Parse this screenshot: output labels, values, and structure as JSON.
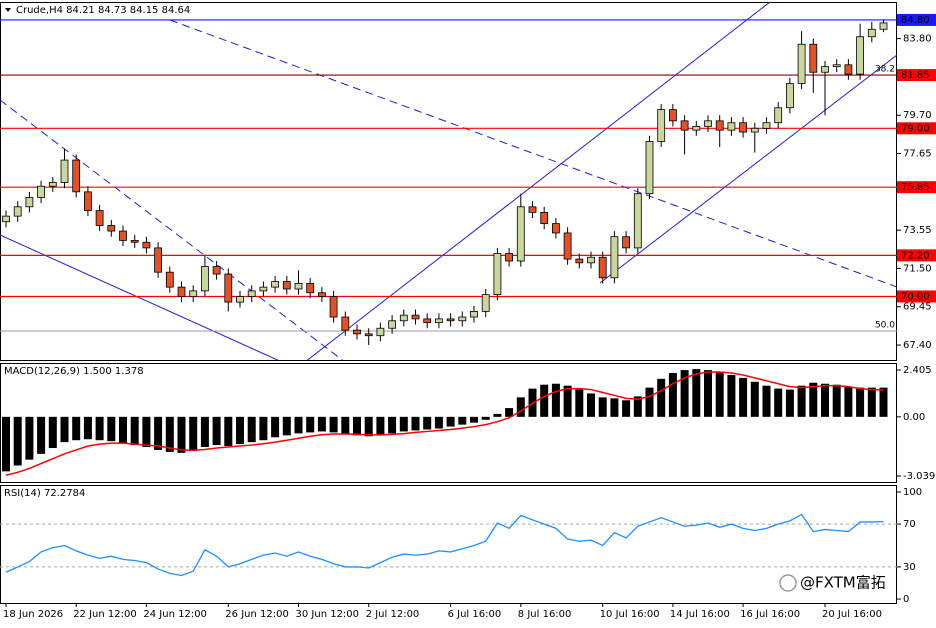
{
  "chart_data": [
    {
      "type": "candlestick",
      "title": "Crude,H4  84.21 84.73 84.15 84.64",
      "open": [
        74.0,
        74.3,
        74.8,
        75.3,
        75.9,
        76.1,
        77.3,
        75.6,
        74.6,
        73.8,
        73.5,
        73.0,
        72.9,
        72.6,
        71.3,
        70.5,
        70.0,
        70.3,
        71.6,
        71.2,
        69.7,
        70.0,
        70.3,
        70.5,
        70.8,
        70.4,
        70.7,
        70.2,
        70.0,
        68.9,
        68.2,
        68.0,
        67.9,
        68.3,
        68.7,
        69.0,
        68.8,
        68.6,
        68.8,
        68.7,
        68.9,
        69.2,
        70.1,
        72.3,
        71.9,
        74.8,
        74.5,
        73.9,
        73.4,
        72.0,
        71.8,
        72.1,
        71.0,
        73.2,
        72.6,
        75.5,
        78.3,
        80.0,
        79.4,
        78.9,
        79.1,
        79.4,
        78.9,
        79.3,
        78.8,
        79.0,
        79.3,
        80.1,
        81.4,
        83.5,
        82.0,
        82.3,
        82.4,
        81.9,
        83.9,
        84.3
      ],
      "high": [
        74.6,
        75.1,
        75.6,
        76.2,
        76.4,
        77.9,
        77.6,
        75.9,
        74.9,
        74.1,
        73.8,
        73.3,
        73.2,
        72.9,
        71.6,
        70.8,
        70.6,
        72.2,
        71.9,
        71.5,
        70.3,
        70.6,
        70.8,
        71.1,
        71.1,
        71.4,
        71.0,
        70.5,
        70.3,
        69.2,
        68.5,
        68.3,
        68.6,
        69.0,
        69.3,
        69.3,
        69.1,
        69.1,
        69.1,
        69.2,
        69.5,
        70.4,
        72.6,
        72.6,
        75.5,
        75.1,
        74.8,
        74.2,
        73.7,
        72.3,
        72.4,
        72.4,
        73.5,
        73.5,
        75.8,
        78.6,
        80.3,
        80.3,
        79.7,
        79.4,
        79.7,
        79.7,
        79.6,
        79.6,
        79.3,
        79.6,
        80.4,
        81.7,
        84.2,
        83.8,
        82.6,
        82.7,
        82.7,
        84.6,
        84.7,
        84.8
      ],
      "low": [
        73.7,
        74.0,
        74.5,
        75.0,
        75.6,
        75.8,
        75.3,
        74.3,
        73.5,
        73.2,
        72.7,
        72.6,
        72.3,
        71.0,
        70.2,
        69.7,
        69.7,
        70.0,
        70.9,
        69.2,
        69.4,
        69.7,
        70.0,
        70.2,
        70.1,
        70.1,
        69.9,
        69.7,
        68.6,
        67.9,
        67.7,
        67.4,
        67.6,
        68.0,
        68.4,
        68.5,
        68.3,
        68.3,
        68.4,
        68.4,
        68.6,
        68.9,
        69.8,
        71.6,
        71.6,
        74.2,
        73.6,
        73.1,
        71.7,
        71.5,
        71.5,
        70.7,
        70.7,
        72.3,
        72.3,
        75.2,
        78.0,
        79.1,
        77.6,
        78.6,
        78.8,
        78.0,
        78.6,
        78.5,
        77.7,
        78.7,
        79.0,
        79.8,
        81.1,
        80.9,
        79.7,
        82.0,
        81.6,
        81.6,
        83.6,
        84.15
      ],
      "close": [
        74.3,
        74.8,
        75.3,
        75.9,
        76.1,
        77.3,
        75.6,
        74.6,
        73.8,
        73.5,
        73.0,
        72.9,
        72.6,
        71.3,
        70.5,
        70.0,
        70.3,
        71.6,
        71.2,
        69.7,
        70.0,
        70.3,
        70.5,
        70.8,
        70.4,
        70.7,
        70.2,
        70.0,
        68.9,
        68.2,
        68.0,
        67.9,
        68.3,
        68.7,
        69.0,
        68.8,
        68.6,
        68.8,
        68.7,
        68.9,
        69.2,
        70.1,
        72.3,
        71.9,
        74.8,
        74.5,
        73.9,
        73.4,
        72.0,
        71.8,
        72.1,
        71.0,
        73.2,
        72.6,
        75.5,
        78.3,
        80.0,
        79.4,
        78.9,
        79.1,
        79.4,
        78.9,
        79.3,
        78.8,
        79.0,
        79.3,
        80.1,
        81.4,
        83.5,
        82.0,
        82.3,
        82.4,
        81.9,
        83.9,
        84.3,
        84.64
      ],
      "up_color": "#c9d69e",
      "down_color": "#e0522a",
      "ylim": [
        66.6,
        85.76
      ],
      "yticks": [
        {
          "value": 67.4,
          "label": "67.40"
        },
        {
          "value": 69.45,
          "label": "69.45"
        },
        {
          "value": 71.5,
          "label": "71.50"
        },
        {
          "value": 73.55,
          "label": "73.55"
        },
        {
          "value": 77.65,
          "label": "77.65"
        },
        {
          "value": 79.7,
          "label": "79.70"
        },
        {
          "value": 83.8,
          "label": "83.80"
        }
      ],
      "levels": [
        {
          "value": 84.8,
          "label": "84.80",
          "color": "#1a1aff",
          "line_color": "#1a1aff"
        },
        {
          "value": 81.85,
          "label": "81.85",
          "color": "#ff0000",
          "line_color": "#8b0000"
        },
        {
          "value": 79.0,
          "label": "79.00",
          "color": "#ff0000",
          "line_color": "#ff0000"
        },
        {
          "value": 75.85,
          "label": "75.85",
          "color": "#ff0000",
          "line_color": "#ff0000"
        },
        {
          "value": 72.2,
          "label": "72.20",
          "color": "#ff0000",
          "line_color": "#ff0000"
        },
        {
          "value": 70.0,
          "label": "70.00",
          "color": "#ff0000",
          "line_color": "#ff0000"
        }
      ],
      "fib_levels": [
        {
          "value": 81.85,
          "label": "38.2"
        },
        {
          "value": 68.15,
          "label": "50.0"
        }
      ],
      "xticks": [
        {
          "value": 0,
          "label": "18 Jun 2026"
        },
        {
          "value": 6,
          "label": "22 Jun 12:00"
        },
        {
          "value": 12,
          "label": "24 Jun 12:00"
        },
        {
          "value": 19,
          "label": "26 Jun 12:00"
        },
        {
          "value": 25,
          "label": "30 Jun 12:00"
        },
        {
          "value": 31,
          "label": "2 Jul 12:00"
        },
        {
          "value": 38,
          "label": "6 Jul 16:00"
        },
        {
          "value": 44,
          "label": "8 Jul 16:00"
        },
        {
          "value": 51,
          "label": "10 Jul 16:00"
        },
        {
          "value": 57,
          "label": "14 Jul 16:00"
        },
        {
          "value": 63,
          "label": "16 Jul 16:00"
        },
        {
          "value": 70,
          "label": "20 Jul 16:00"
        }
      ]
    },
    {
      "type": "macd",
      "title": "MACD(12,26,9) 1.500 1.378",
      "histogram": [
        -2.8,
        -2.5,
        -2.2,
        -1.9,
        -1.6,
        -1.3,
        -1.2,
        -1.15,
        -1.2,
        -1.25,
        -1.35,
        -1.45,
        -1.55,
        -1.7,
        -1.8,
        -1.85,
        -1.75,
        -1.55,
        -1.45,
        -1.5,
        -1.4,
        -1.3,
        -1.2,
        -1.05,
        -0.95,
        -0.85,
        -0.8,
        -0.75,
        -0.8,
        -0.9,
        -0.95,
        -1.0,
        -0.95,
        -0.85,
        -0.75,
        -0.7,
        -0.65,
        -0.6,
        -0.5,
        -0.4,
        -0.3,
        -0.15,
        0.15,
        0.45,
        1.0,
        1.45,
        1.65,
        1.7,
        1.6,
        1.4,
        1.2,
        1.0,
        0.95,
        0.85,
        1.05,
        1.5,
        1.95,
        2.25,
        2.4,
        2.45,
        2.4,
        2.3,
        2.15,
        2.0,
        1.8,
        1.6,
        1.45,
        1.4,
        1.6,
        1.75,
        1.7,
        1.65,
        1.55,
        1.5,
        1.5,
        1.5
      ],
      "signal": [
        -3.0,
        -2.85,
        -2.65,
        -2.4,
        -2.15,
        -1.9,
        -1.7,
        -1.5,
        -1.4,
        -1.35,
        -1.35,
        -1.4,
        -1.45,
        -1.5,
        -1.6,
        -1.7,
        -1.72,
        -1.68,
        -1.6,
        -1.55,
        -1.5,
        -1.45,
        -1.38,
        -1.3,
        -1.2,
        -1.1,
        -1.0,
        -0.92,
        -0.88,
        -0.88,
        -0.9,
        -0.92,
        -0.93,
        -0.9,
        -0.86,
        -0.8,
        -0.75,
        -0.7,
        -0.65,
        -0.58,
        -0.5,
        -0.4,
        -0.25,
        -0.05,
        0.3,
        0.7,
        1.05,
        1.3,
        1.45,
        1.45,
        1.4,
        1.25,
        1.1,
        0.95,
        0.9,
        1.05,
        1.35,
        1.7,
        2.0,
        2.2,
        2.3,
        2.3,
        2.25,
        2.15,
        2.0,
        1.85,
        1.7,
        1.55,
        1.5,
        1.55,
        1.6,
        1.6,
        1.55,
        1.45,
        1.4,
        1.378
      ],
      "histogram_color": "#000000",
      "signal_color": "#ff0000",
      "ylim": [
        -3.347,
        2.765
      ],
      "yticks": [
        -3.039,
        {
          "value": 0,
          "label": "0.00"
        },
        2.405
      ]
    },
    {
      "type": "rsi",
      "title": "RSI(14) 72.2784",
      "values": [
        25,
        30,
        35,
        44,
        48,
        50,
        45,
        41,
        38,
        40,
        37,
        36,
        34,
        28,
        24,
        22,
        26,
        46,
        40,
        30,
        33,
        37,
        41,
        43,
        40,
        44,
        40,
        37,
        33,
        30,
        30,
        29,
        34,
        39,
        42,
        41,
        42,
        45,
        44,
        47,
        50,
        54,
        71,
        66,
        78,
        74,
        70,
        66,
        56,
        54,
        55,
        50,
        62,
        57,
        68,
        72,
        76,
        72,
        68,
        69,
        71,
        67,
        70,
        66,
        64,
        66,
        70,
        73,
        79,
        63,
        65,
        64,
        63,
        72,
        72,
        72.2784
      ],
      "color": "#1e90ff",
      "ylim": [
        -3.7,
        106.5
      ],
      "yticks": [
        0,
        30,
        70,
        100
      ],
      "levels": [
        30,
        70
      ]
    }
  ],
  "watermark": "@FXTM富拓"
}
